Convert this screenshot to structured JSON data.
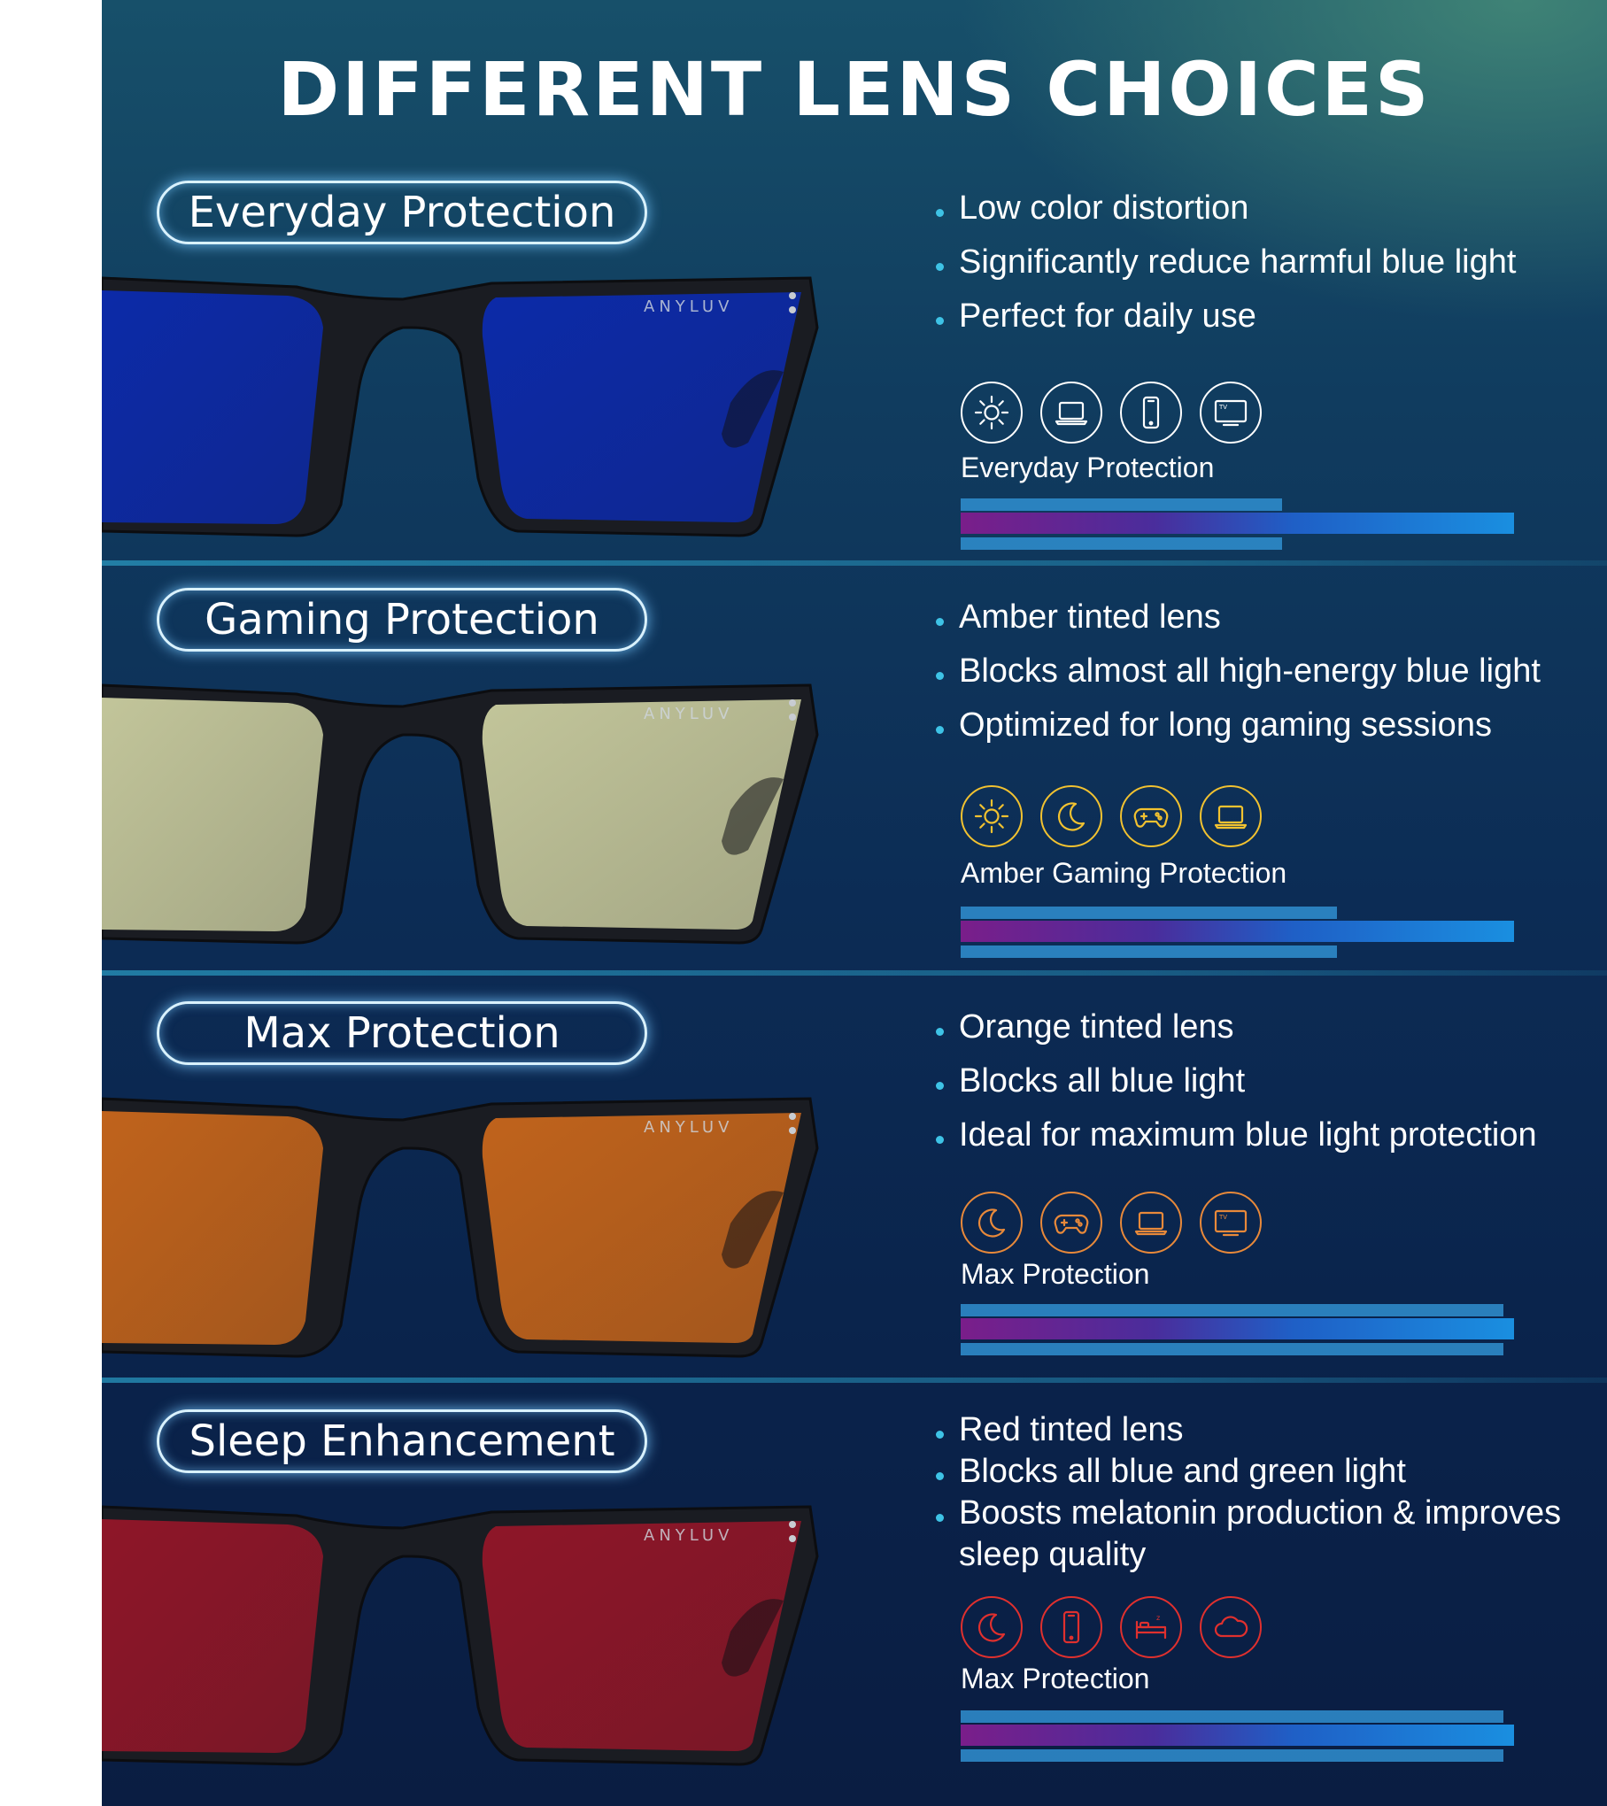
{
  "title": "DIFFERENT LENS CHOICES",
  "brand": "ANYLUV",
  "sections": [
    {
      "name": "Everyday Protection",
      "lens_color": "#0c2aa8",
      "accent": "#ffffff",
      "bullets": [
        "Low color distortion",
        "Significantly reduce harmful blue light",
        "Perfect for daily use"
      ],
      "icons": [
        "sun-icon",
        "laptop-icon",
        "phone-icon",
        "tv-icon"
      ],
      "level_label": "Everyday Protection",
      "level": 0.58
    },
    {
      "name": "Gaming Protection",
      "lens_color": "#c2c59a",
      "accent": "#f2c230",
      "bullets": [
        "Amber tinted lens",
        "Blocks almost all high-energy blue light",
        "Optimized for long gaming sessions"
      ],
      "icons": [
        "sun-icon",
        "moon-icon",
        "gamepad-icon",
        "laptop-icon"
      ],
      "level_label": "Amber Gaming Protection",
      "level": 0.68
    },
    {
      "name": "Max Protection",
      "lens_color": "#c0631c",
      "accent": "#e8893a",
      "bullets": [
        "Orange tinted lens",
        "Blocks all blue light",
        "Ideal for maximum blue light protection"
      ],
      "icons": [
        "moon-icon",
        "gamepad-icon",
        "laptop-icon",
        "tv-icon"
      ],
      "level_label": "Max Protection",
      "level": 0.98
    },
    {
      "name": "Sleep Enhancement",
      "lens_color": "#8e1628",
      "accent": "#e0302e",
      "bullets": [
        "Red tinted lens",
        "Blocks all blue and green light",
        "Boosts melatonin production & improves",
        "sleep quality"
      ],
      "icons": [
        "moon-icon",
        "phone-icon",
        "bed-icon",
        "cloud-icon"
      ],
      "level_label": "Max Protection",
      "level": 1.0
    }
  ]
}
